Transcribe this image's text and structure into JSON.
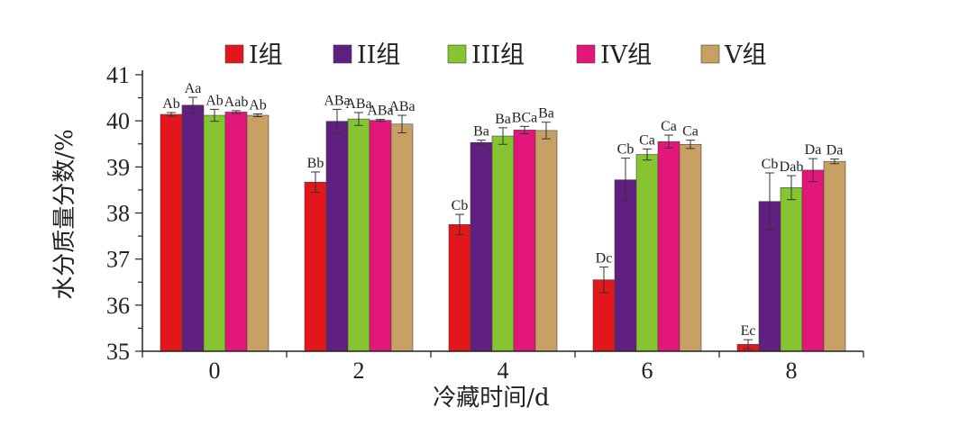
{
  "chart_data": {
    "type": "bar",
    "xlabel": "冷藏时间/d",
    "ylabel": "水分质量分数/%",
    "ylim": [
      35,
      41
    ],
    "yticks": [
      35,
      36,
      37,
      38,
      39,
      40,
      41
    ],
    "categories": [
      "0",
      "2",
      "4",
      "6",
      "8"
    ],
    "legend_position": "top",
    "grid": false,
    "series": [
      {
        "name": "I组",
        "color": "#e3161c",
        "values": [
          40.14,
          38.67,
          37.75,
          36.55,
          35.15
        ],
        "errors": [
          0.04,
          0.22,
          0.22,
          0.28,
          0.1
        ],
        "labels": [
          "Ab",
          "Bb",
          "Cb",
          "Dc",
          "Ec"
        ]
      },
      {
        "name": "II组",
        "color": "#5f2080",
        "values": [
          40.34,
          39.99,
          39.53,
          38.72,
          38.25
        ],
        "errors": [
          0.17,
          0.26,
          0.05,
          0.47,
          0.62
        ],
        "labels": [
          "Aa",
          "ABa",
          "Ba",
          "Cb",
          "Cb"
        ]
      },
      {
        "name": "III组",
        "color": "#86c531",
        "values": [
          40.12,
          40.04,
          39.67,
          39.27,
          38.55
        ],
        "errors": [
          0.13,
          0.14,
          0.18,
          0.12,
          0.26
        ],
        "labels": [
          "Ab",
          "ABa",
          "Ba",
          "Ca",
          "Dab"
        ]
      },
      {
        "name": "IV组",
        "color": "#e3177b",
        "values": [
          40.19,
          40.01,
          39.8,
          39.55,
          38.93
        ],
        "errors": [
          0.03,
          0.02,
          0.08,
          0.14,
          0.25
        ],
        "labels": [
          "Aab",
          "ABa",
          "BCa",
          "Ca",
          "Da"
        ]
      },
      {
        "name": "V组",
        "color": "#c8a063",
        "values": [
          40.12,
          39.93,
          39.79,
          39.49,
          39.12
        ],
        "errors": [
          0.03,
          0.19,
          0.18,
          0.09,
          0.05
        ],
        "labels": [
          "Ab",
          "ABa",
          "Ba",
          "Ca",
          "Da"
        ]
      }
    ]
  }
}
